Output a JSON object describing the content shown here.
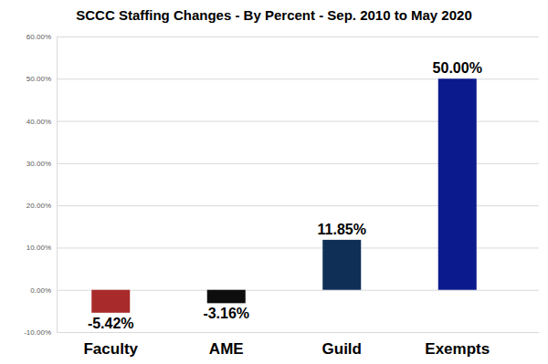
{
  "chart_data": {
    "type": "bar",
    "title": "SCCC Staffing Changes - By Percent - Sep. 2010 to May 2020",
    "categories": [
      "Faculty",
      "AME",
      "Guild",
      "Exempts"
    ],
    "values": [
      -5.42,
      -3.16,
      11.85,
      50.0
    ],
    "value_labels": [
      "-5.42%",
      "-3.16%",
      "11.85%",
      "50.00%"
    ],
    "colors": [
      "#a82a2a",
      "#0d0d0d",
      "#0f2f57",
      "#0b1a8c"
    ],
    "ylim": [
      -10,
      60
    ],
    "yticks": [
      {
        "value": -10,
        "label": "-10.00%"
      },
      {
        "value": 0,
        "label": "0.00%"
      },
      {
        "value": 10,
        "label": "10.00%"
      },
      {
        "value": 20,
        "label": "20.00%"
      },
      {
        "value": 30,
        "label": "30.00%"
      },
      {
        "value": 40,
        "label": "40.00%"
      },
      {
        "value": 50,
        "label": "50.00%"
      },
      {
        "value": 60,
        "label": "60.00%"
      }
    ],
    "grid": true,
    "data_labels": true
  }
}
